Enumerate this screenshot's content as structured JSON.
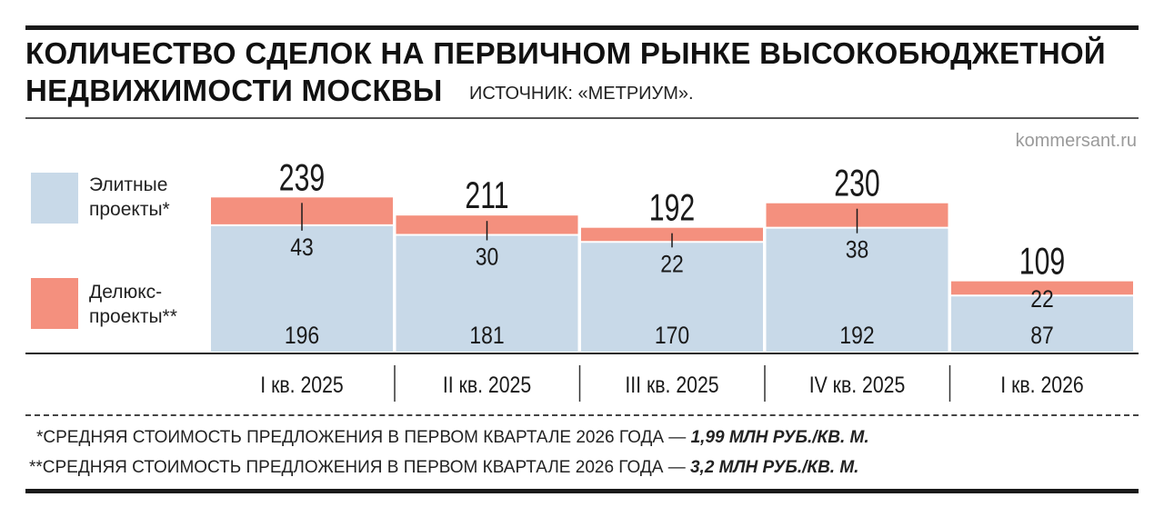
{
  "header": {
    "title_line1": "КОЛИЧЕСТВО СДЕЛОК НА ПЕРВИЧНОМ РЫНКЕ ВЫСОКОБЮДЖЕТНОЙ",
    "title_line2": "НЕДВИЖИМОСТИ МОСКВЫ",
    "source": "ИСТОЧНИК: «МЕТРИУМ».",
    "watermark": "kommersant.ru"
  },
  "legend": {
    "elite_line1": "Элитные",
    "elite_line2": "проекты*",
    "deluxe_line1": "Делюкс-",
    "deluxe_line2": "проекты**"
  },
  "colors": {
    "elite": "#c8d9e8",
    "deluxe": "#f4907e",
    "text": "#1a1a1a"
  },
  "chart_data": {
    "type": "bar",
    "stacked": true,
    "categories": [
      "I кв. 2025",
      "II кв. 2025",
      "III кв. 2025",
      "IV кв. 2025",
      "I кв. 2026"
    ],
    "series": [
      {
        "name": "Элитные проекты*",
        "values": [
          196,
          181,
          170,
          192,
          87
        ]
      },
      {
        "name": "Делюкс-проекты**",
        "values": [
          43,
          30,
          22,
          38,
          22
        ]
      }
    ],
    "totals": [
      239,
      211,
      192,
      230,
      109
    ],
    "legend_position": "left",
    "grid": false
  },
  "footnotes": {
    "note1_prefix": "*СРЕДНЯЯ СТОИМОСТЬ ПРЕДЛОЖЕНИЯ В ПЕРВОМ КВАРТАЛЕ 2026 ГОДА — ",
    "note1_value": "1,99 МЛН РУБ./КВ. М.",
    "note2_prefix": "**СРЕДНЯЯ СТОИМОСТЬ ПРЕДЛОЖЕНИЯ В ПЕРВОМ КВАРТАЛЕ 2026 ГОДА — ",
    "note2_value": "3,2 МЛН РУБ./КВ. М."
  }
}
